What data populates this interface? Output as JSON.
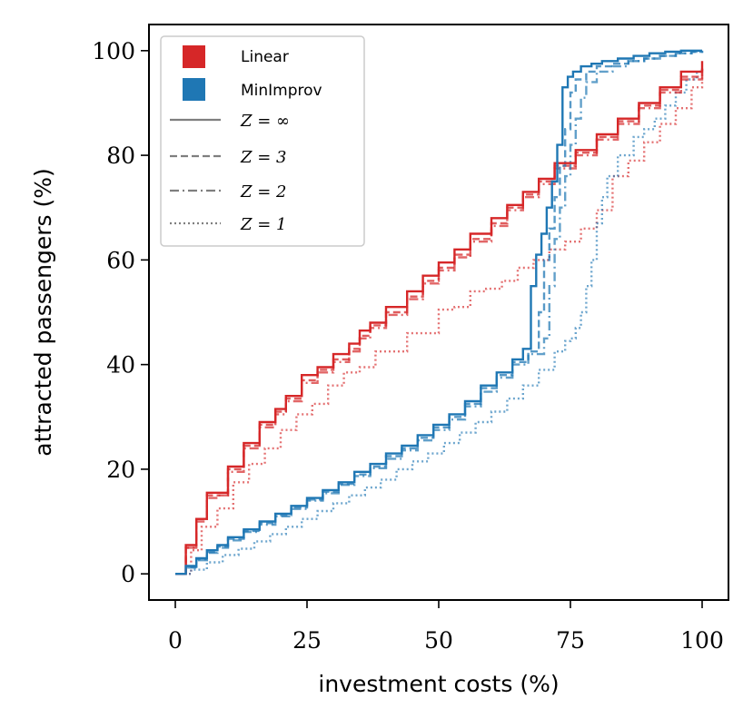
{
  "chart_data": {
    "type": "line",
    "title": "",
    "xlabel": "investment costs (%)",
    "ylabel": "attracted passengers (%)",
    "xlim": [
      -5,
      105
    ],
    "ylim": [
      -5,
      105
    ],
    "xticks": [
      0,
      25,
      50,
      75,
      100
    ],
    "yticks": [
      0,
      20,
      40,
      60,
      80,
      100
    ],
    "xtick_labels": [
      "0",
      "25",
      "50",
      "75",
      "100"
    ],
    "ytick_labels": [
      "0",
      "20",
      "40",
      "60",
      "80",
      "100"
    ],
    "grid": false,
    "legend_position": "top-left",
    "colors": {
      "Linear": "#d62728",
      "MinImprov": "#1f77b4",
      "Z": "#7f7f7f"
    },
    "legend": {
      "methods": [
        "Linear",
        "MinImprov"
      ],
      "z_labels": [
        "Z = ∞",
        "Z = 3",
        "Z = 2",
        "Z = 1"
      ]
    },
    "series": [
      {
        "name": "Linear, Z = ∞",
        "method": "Linear",
        "style": "solid",
        "x": [
          0,
          2,
          4,
          6,
          8,
          10,
          13,
          16,
          19,
          21,
          24,
          27,
          30,
          33,
          35,
          37,
          40,
          44,
          47,
          50,
          53,
          56,
          60,
          63,
          66,
          69,
          72,
          76,
          80,
          84,
          88,
          92,
          96,
          100
        ],
        "y": [
          0,
          5.5,
          10.5,
          15.5,
          15.5,
          20.5,
          25,
          29,
          31.5,
          34,
          38,
          39.5,
          42,
          44,
          46.5,
          48,
          51,
          54,
          57,
          59.5,
          62,
          65,
          68,
          70.5,
          73,
          75.5,
          78.5,
          81,
          84,
          87,
          90,
          93,
          96,
          98
        ]
      },
      {
        "name": "Linear, Z = 3",
        "method": "Linear",
        "style": "dashed",
        "x": [
          0,
          2,
          4,
          6,
          8,
          10,
          13,
          16,
          19,
          21,
          24,
          27,
          30,
          33,
          35,
          37,
          40,
          44,
          47,
          50,
          53,
          56,
          60,
          63,
          66,
          69,
          72,
          76,
          80,
          84,
          88,
          92,
          96,
          100
        ],
        "y": [
          0,
          5,
          10.5,
          15,
          15,
          20,
          24.5,
          28.5,
          31,
          33.5,
          37,
          39,
          41,
          43,
          45.5,
          47.5,
          50,
          53,
          56,
          58.5,
          61,
          64,
          67,
          70,
          72.5,
          75,
          78,
          80.5,
          83.5,
          86.5,
          89.5,
          92.5,
          95,
          97
        ]
      },
      {
        "name": "Linear, Z = 2",
        "method": "Linear",
        "style": "dashdot",
        "x": [
          0,
          2,
          4,
          6,
          8,
          10,
          13,
          16,
          19,
          21,
          24,
          27,
          30,
          33,
          35,
          37,
          40,
          44,
          47,
          50,
          53,
          56,
          60,
          63,
          66,
          69,
          72,
          76,
          80,
          84,
          88,
          92,
          96,
          100
        ],
        "y": [
          0,
          5,
          10,
          14.5,
          15,
          19.5,
          24,
          28,
          30.5,
          33,
          36.5,
          38.5,
          40.5,
          42.5,
          45,
          47,
          49.5,
          52.5,
          55.5,
          58,
          60.5,
          63.5,
          66.5,
          69.5,
          72,
          74.5,
          77.5,
          80,
          83,
          86,
          89,
          92,
          94.5,
          96.5
        ]
      },
      {
        "name": "Linear, Z = 1",
        "method": "Linear",
        "style": "dotted",
        "x": [
          0,
          3,
          5,
          8,
          11,
          14,
          17,
          20,
          23,
          26,
          29,
          32,
          35,
          38,
          41,
          44,
          47,
          50,
          53,
          56,
          59,
          62,
          65,
          68,
          71,
          74,
          77,
          80,
          83,
          86,
          89,
          92,
          95,
          98,
          100
        ],
        "y": [
          0,
          4.5,
          9,
          12.5,
          17.5,
          21,
          24,
          27.5,
          30.5,
          32.5,
          36,
          38.5,
          39.5,
          42.5,
          42.5,
          46,
          46,
          50.5,
          51,
          54,
          54.5,
          56,
          58.5,
          60,
          62,
          63.5,
          66,
          69.5,
          76,
          79,
          82.5,
          86,
          89,
          93,
          96
        ]
      },
      {
        "name": "MinImprov, Z = ∞",
        "method": "MinImprov",
        "style": "solid",
        "x": [
          0,
          2,
          4,
          6,
          8,
          10,
          13,
          16,
          19,
          22,
          25,
          28,
          31,
          34,
          37,
          40,
          43,
          46,
          49,
          52,
          55,
          58,
          61,
          64,
          66,
          67.5,
          68.5,
          69.5,
          70.5,
          71.5,
          72.5,
          73.5,
          74.5,
          75.5,
          77,
          79,
          81,
          84,
          87,
          90,
          93,
          96,
          100
        ],
        "y": [
          0,
          1.5,
          3,
          4.5,
          5.5,
          7,
          8.5,
          10,
          11.5,
          13,
          14.5,
          16,
          17.5,
          19.5,
          21,
          23,
          24.5,
          26.5,
          28.5,
          30.5,
          33,
          36,
          38.5,
          41,
          43,
          55,
          61,
          65,
          70,
          75,
          82,
          93,
          95,
          96,
          97,
          97.5,
          98,
          98.5,
          99,
          99.5,
          99.8,
          100,
          100
        ]
      },
      {
        "name": "MinImprov, Z = 3",
        "method": "MinImprov",
        "style": "dashed",
        "x": [
          0,
          2,
          4,
          6,
          8,
          10,
          13,
          16,
          19,
          22,
          25,
          28,
          31,
          34,
          37,
          40,
          43,
          46,
          49,
          52,
          55,
          58,
          61,
          64,
          67,
          69,
          70,
          71,
          72,
          73,
          74,
          75,
          76,
          78,
          80,
          83,
          86,
          89,
          92,
          95,
          98,
          100
        ],
        "y": [
          0,
          1.3,
          2.8,
          4.2,
          5.2,
          6.7,
          8.2,
          9.7,
          11.2,
          12.7,
          14.2,
          15.7,
          17.2,
          19,
          20.5,
          22.5,
          24,
          26,
          28,
          30,
          32.5,
          35.5,
          38,
          40.5,
          42.5,
          50,
          60,
          66,
          72,
          78,
          85,
          92,
          94.5,
          96,
          97,
          97.5,
          98,
          98.5,
          99,
          99.5,
          99.8,
          100
        ]
      },
      {
        "name": "MinImprov, Z = 2",
        "method": "MinImprov",
        "style": "dashdot",
        "x": [
          0,
          2,
          4,
          6,
          8,
          10,
          13,
          16,
          19,
          22,
          25,
          28,
          31,
          34,
          37,
          40,
          43,
          46,
          49,
          52,
          55,
          58,
          61,
          64,
          67,
          70,
          71,
          72,
          73,
          74,
          75,
          76,
          77,
          78,
          80,
          83,
          86,
          89,
          92,
          95,
          98,
          100
        ],
        "y": [
          0,
          1.2,
          2.6,
          4,
          5,
          6.4,
          8,
          9.4,
          11,
          12.4,
          14,
          15.4,
          17,
          18.7,
          20.2,
          22,
          23.6,
          25.5,
          27.5,
          29.5,
          32,
          34.8,
          37.5,
          40,
          42,
          45,
          55,
          64,
          70,
          76,
          82,
          87,
          91,
          94,
          96,
          97,
          98,
          98.5,
          99,
          99.5,
          99.8,
          100
        ]
      },
      {
        "name": "MinImprov, Z = 1",
        "method": "MinImprov",
        "style": "dotted",
        "x": [
          0,
          3,
          6,
          9,
          12,
          15,
          18,
          21,
          24,
          27,
          30,
          33,
          36,
          39,
          42,
          45,
          48,
          51,
          54,
          57,
          60,
          63,
          66,
          69,
          72,
          74,
          75,
          76,
          77,
          78,
          79,
          80,
          81,
          82,
          84,
          87,
          89,
          91,
          93,
          95,
          97,
          99,
          100
        ],
        "y": [
          0,
          0.8,
          2.2,
          3.6,
          4.8,
          6.2,
          7.6,
          9,
          10.5,
          12,
          13.5,
          15,
          16.5,
          18,
          20,
          21.5,
          23,
          25,
          27,
          29,
          31,
          33.5,
          36,
          39,
          42.5,
          44.5,
          45,
          47,
          50,
          55,
          60,
          67,
          72,
          76,
          80,
          83.5,
          85,
          87,
          89.5,
          92,
          94.5,
          96,
          97
        ]
      }
    ]
  }
}
